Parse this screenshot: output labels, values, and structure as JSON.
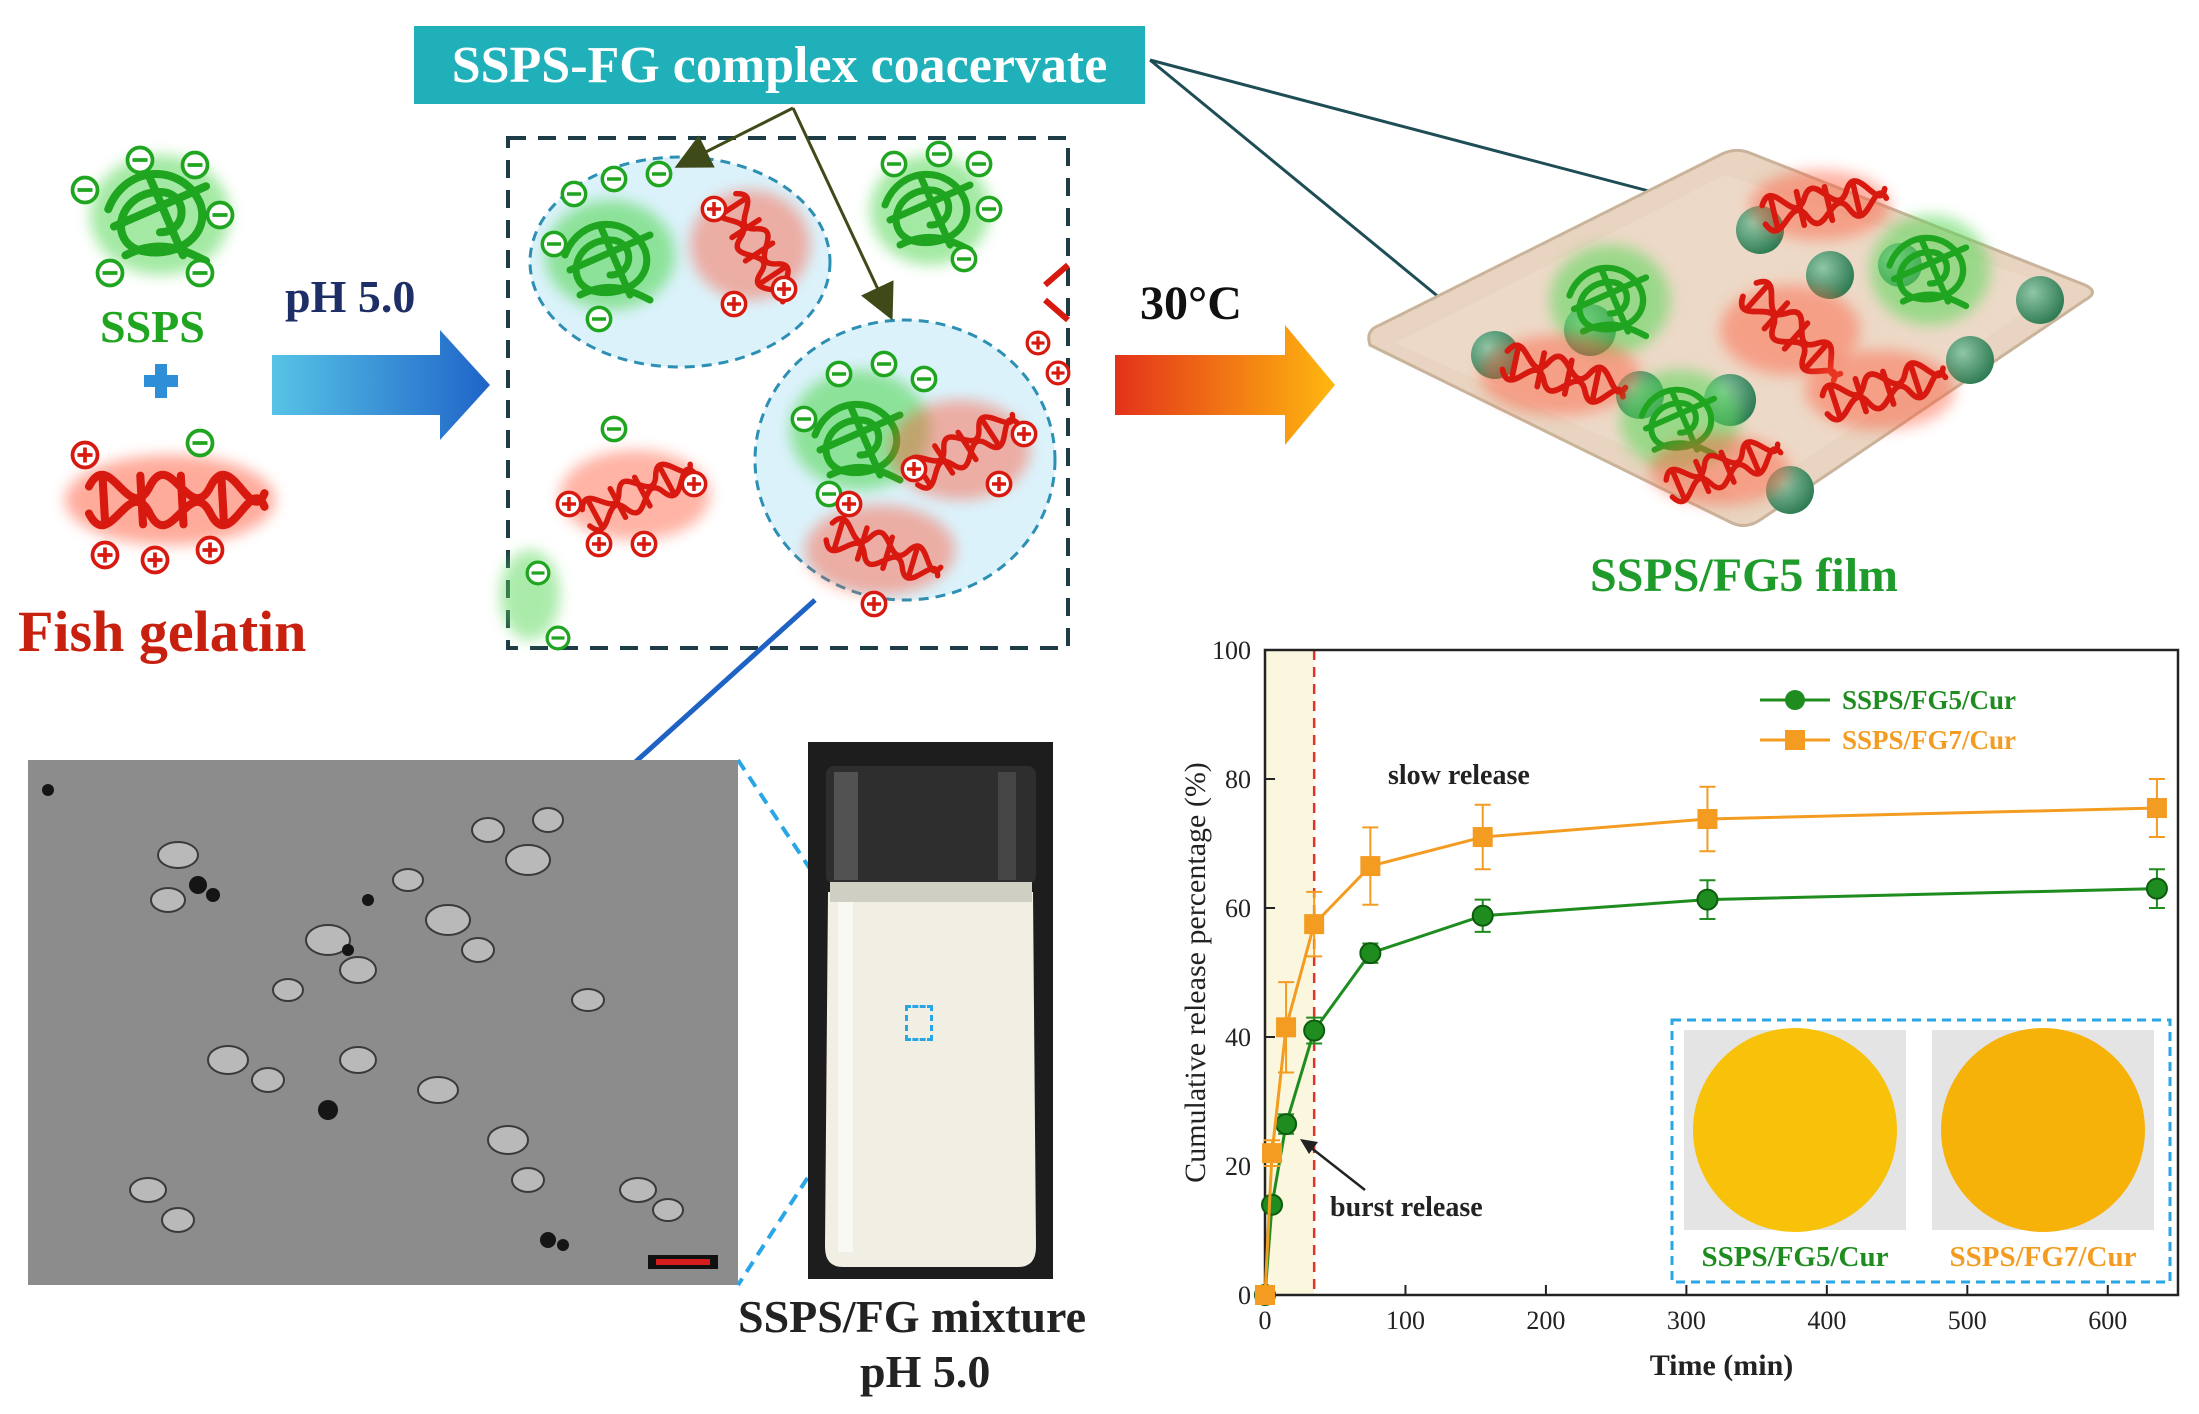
{
  "diagram": {
    "banner": "SSPS-FG complex coacervate",
    "ssps_label": "SSPS",
    "fish_gelatin_label": "Fish gelatin",
    "ph_arrow_label": "pH 5.0",
    "temp_arrow_label": "30°C",
    "film_label": "SSPS/FG5 film",
    "mixture_label_line1": "SSPS/FG mixture",
    "mixture_label_line2": "pH 5.0",
    "colors": {
      "ssps": "#1fa51f",
      "gelatin": "#d7190f",
      "banner": "#1fb0b9",
      "arrow_blue": "#2a8fd8",
      "arrow_orange": "#f27c12"
    }
  },
  "chart_data": {
    "type": "line",
    "xlabel": "Time (min)",
    "ylabel": "Cumulative release percentage (%)",
    "xlim": [
      0,
      650
    ],
    "ylim": [
      0,
      100
    ],
    "xticks": [
      "0",
      "100",
      "200",
      "300",
      "400",
      "500",
      "600"
    ],
    "yticks": [
      "0",
      "20",
      "40",
      "60",
      "80",
      "100"
    ],
    "legend_position": "top-right",
    "series": [
      {
        "name": "SSPS/FG5/Cur",
        "color": "#1e8c1e",
        "marker": "circle",
        "x": [
          0,
          5,
          15,
          35,
          75,
          155,
          315,
          635
        ],
        "y": [
          0,
          14,
          26.5,
          41,
          53,
          58.8,
          61.3,
          63
        ],
        "err": [
          0,
          1,
          1.5,
          2,
          1.5,
          2.5,
          3,
          3
        ]
      },
      {
        "name": "SSPS/FG7/Cur",
        "color": "#f39c21",
        "marker": "square",
        "x": [
          0,
          5,
          15,
          35,
          75,
          155,
          315,
          635
        ],
        "y": [
          0,
          22,
          41.5,
          57.5,
          66.5,
          71,
          73.8,
          75.5
        ],
        "err": [
          0,
          2,
          7,
          5,
          6,
          5,
          5,
          4.5
        ]
      }
    ],
    "annotations": {
      "slow_release": "slow release",
      "burst_release": "burst release",
      "burst_end_x": 35
    },
    "inset_labels": [
      "SSPS/FG5/Cur",
      "SSPS/FG7/Cur"
    ]
  }
}
